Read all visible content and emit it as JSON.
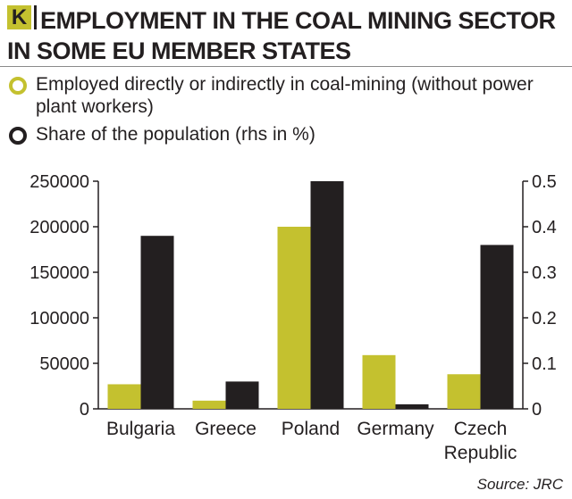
{
  "header": {
    "badge": "K",
    "title": "EMPLOYMENT IN THE COAL MINING SECTOR IN SOME EU MEMBER STATES"
  },
  "legend": [
    {
      "label": "Employed directly or indirectly in coal-mining (without power plant workers)",
      "color": "#c4c12f"
    },
    {
      "label": "Share of the population (rhs in %)",
      "color": "#231f20"
    }
  ],
  "source": "Source: JRC",
  "chart_data": {
    "type": "bar",
    "categories": [
      [
        "Bulgaria"
      ],
      [
        "Greece"
      ],
      [
        "Poland"
      ],
      [
        "Germany"
      ],
      [
        "Czech",
        "Republic"
      ]
    ],
    "series": [
      {
        "name": "Employed directly or indirectly in coal-mining (without power plant workers)",
        "axis": "left",
        "color": "#c4c12f",
        "values": [
          27000,
          9000,
          200000,
          59000,
          38000
        ]
      },
      {
        "name": "Share of the population (rhs in %)",
        "axis": "right",
        "color": "#231f20",
        "values": [
          0.38,
          0.06,
          0.5,
          0.01,
          0.36
        ]
      }
    ],
    "yleft": {
      "ticks": [
        "250000",
        "200000",
        "150000",
        "100000",
        "50000",
        "0"
      ],
      "lim": [
        0,
        250000
      ]
    },
    "yright": {
      "ticks": [
        "0.5",
        "0.4",
        "0.3",
        "0.2",
        "0.1",
        "0"
      ],
      "lim": [
        0,
        0.5
      ]
    },
    "grid": false,
    "legend_position": "top"
  }
}
